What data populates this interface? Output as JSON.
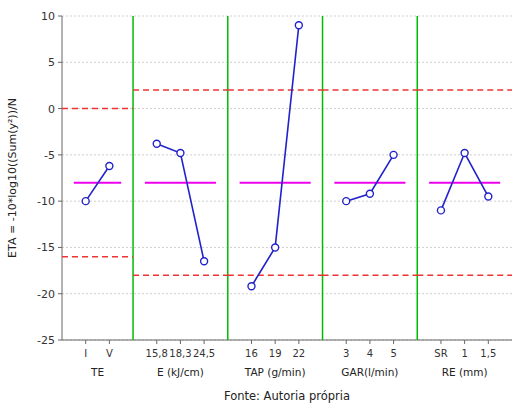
{
  "chart_data": {
    "type": "line",
    "ylabel": "ETA = -10*log10((Sum(y²))/N",
    "xlabel": "Fonte: Autoria própria",
    "ylim": [
      -25,
      10
    ],
    "yticks": [
      -25,
      -20,
      -15,
      -10,
      -5,
      0,
      5,
      10
    ],
    "grid": true,
    "color": "#2222cc",
    "marker": "circle",
    "mean_line": {
      "color": "#ee00ee"
    },
    "limit_lines": {
      "color": "#ee3333",
      "line_style": "dashed"
    },
    "separators": {
      "color": "#00bb00"
    },
    "series": [
      {
        "label": "TE",
        "categories": [
          "I",
          "V"
        ],
        "values": [
          -10,
          -6.2
        ],
        "upper_limit": 0.0,
        "lower_limit": -16.0,
        "mean": -8.0
      },
      {
        "label": "E (kJ/cm)",
        "categories": [
          "15,8",
          "18,3",
          "24,5"
        ],
        "values": [
          -3.8,
          -4.8,
          -16.5
        ],
        "upper_limit": 2.0,
        "lower_limit": -18.0,
        "mean": -8.0
      },
      {
        "label": "TAP (g/min)",
        "categories": [
          "16",
          "19",
          "22"
        ],
        "values": [
          -19.2,
          -15.0,
          9.0
        ],
        "upper_limit": 2.0,
        "lower_limit": -18.0,
        "mean": -8.0
      },
      {
        "label": "GAR(l/min)",
        "categories": [
          "3",
          "4",
          "5"
        ],
        "values": [
          -10.0,
          -9.2,
          -5.0
        ],
        "upper_limit": 2.0,
        "lower_limit": -18.0,
        "mean": -8.0
      },
      {
        "label": "RE (mm)",
        "categories": [
          "SR",
          "1",
          "1,5"
        ],
        "values": [
          -11.0,
          -4.8,
          -9.5
        ],
        "upper_limit": 2.0,
        "lower_limit": -18.0,
        "mean": -8.0
      }
    ]
  }
}
